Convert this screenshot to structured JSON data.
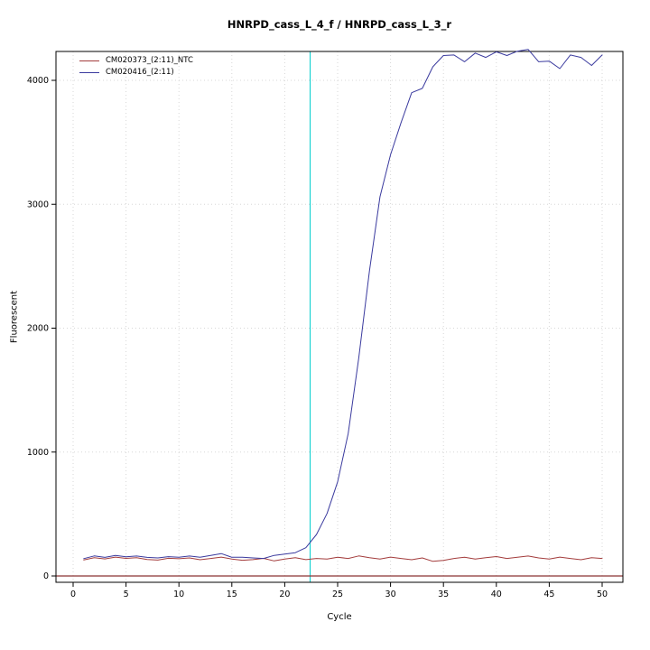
{
  "chart_data": {
    "type": "line",
    "title": "HNRPD_cass_L_4_f / HNRPD_cass_L_3_r",
    "xlabel": "Cycle",
    "ylabel": "Fluorescent",
    "xlim": [
      -1,
      51
    ],
    "ylim": [
      -120,
      4420
    ],
    "xticks": [
      0,
      5,
      10,
      15,
      20,
      25,
      30,
      35,
      40,
      45,
      50
    ],
    "yticks": [
      0,
      1000,
      2000,
      3000,
      4000
    ],
    "grid": "dotted-lightgray",
    "legend_position": "top-left",
    "x": [
      1,
      2,
      3,
      4,
      5,
      6,
      7,
      8,
      9,
      10,
      11,
      12,
      13,
      14,
      15,
      16,
      17,
      18,
      19,
      20,
      21,
      22,
      23,
      24,
      25,
      26,
      27,
      28,
      29,
      30,
      31,
      32,
      33,
      34,
      35,
      36,
      37,
      38,
      39,
      40,
      41,
      42,
      43,
      44,
      45,
      46,
      47,
      48,
      49,
      50
    ],
    "series": [
      {
        "name": "CM020373_(2:11)_NTC",
        "color": "#A33C3C",
        "values": [
          130,
          148,
          138,
          152,
          142,
          147,
          133,
          128,
          143,
          139,
          146,
          131,
          141,
          152,
          137,
          127,
          132,
          142,
          122,
          137,
          147,
          132,
          141,
          136,
          151,
          141,
          162,
          148,
          137,
          152,
          141,
          131,
          146,
          118,
          126,
          141,
          151,
          137,
          147,
          157,
          141,
          151,
          161,
          146,
          137,
          152,
          141,
          131,
          147,
          141
        ]
      },
      {
        "name": "CM020416_(2:11)",
        "color": "#3A3A9E",
        "values": [
          140,
          162,
          150,
          166,
          155,
          161,
          150,
          146,
          156,
          151,
          161,
          151,
          166,
          181,
          151,
          151,
          146,
          141,
          166,
          176,
          188,
          228,
          335,
          505,
          760,
          1150,
          1760,
          2460,
          3060,
          3400,
          3660,
          3900,
          3935,
          4110,
          4200,
          4205,
          4150,
          4220,
          4185,
          4230,
          4200,
          4235,
          4250,
          4150,
          4155,
          4095,
          4205,
          4185,
          4120,
          4205
        ]
      }
    ],
    "baseline": {
      "y": 0,
      "color": "#8B3333"
    },
    "threshold_cycle_line": {
      "x": 22.4,
      "color": "#00CDCD"
    }
  }
}
